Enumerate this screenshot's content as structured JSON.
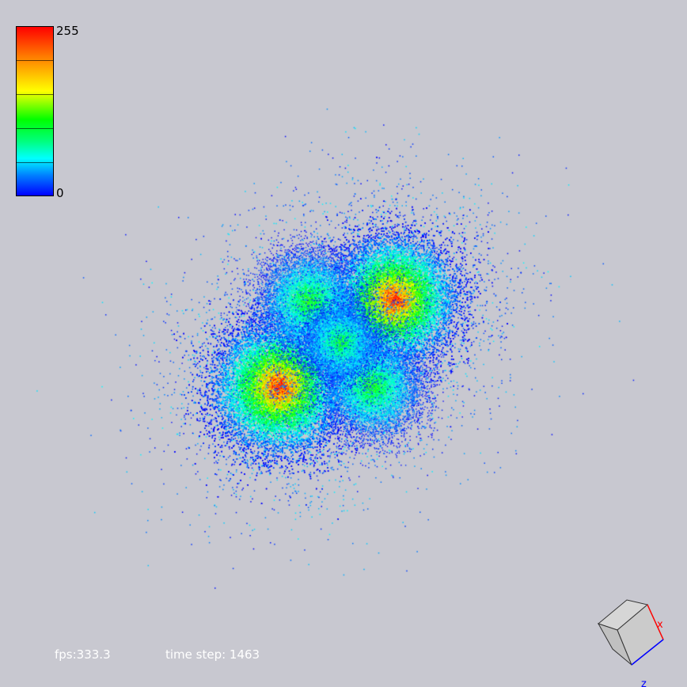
{
  "colorbar": {
    "max_label": "255",
    "min_label": "0",
    "colors": [
      "#ff0000",
      "#ff7f00",
      "#ffff00",
      "#00ff00",
      "#00ffff",
      "#0000ff"
    ]
  },
  "status": {
    "fps": "fps:333.3",
    "time_step": "time step: 1463"
  },
  "axes": {
    "x_label": "x",
    "z_label": "z",
    "x_color": "#ff0000",
    "z_color": "#0000ff",
    "y_color": "#00aa00"
  },
  "scene": {
    "background": "#c8c8d0"
  }
}
